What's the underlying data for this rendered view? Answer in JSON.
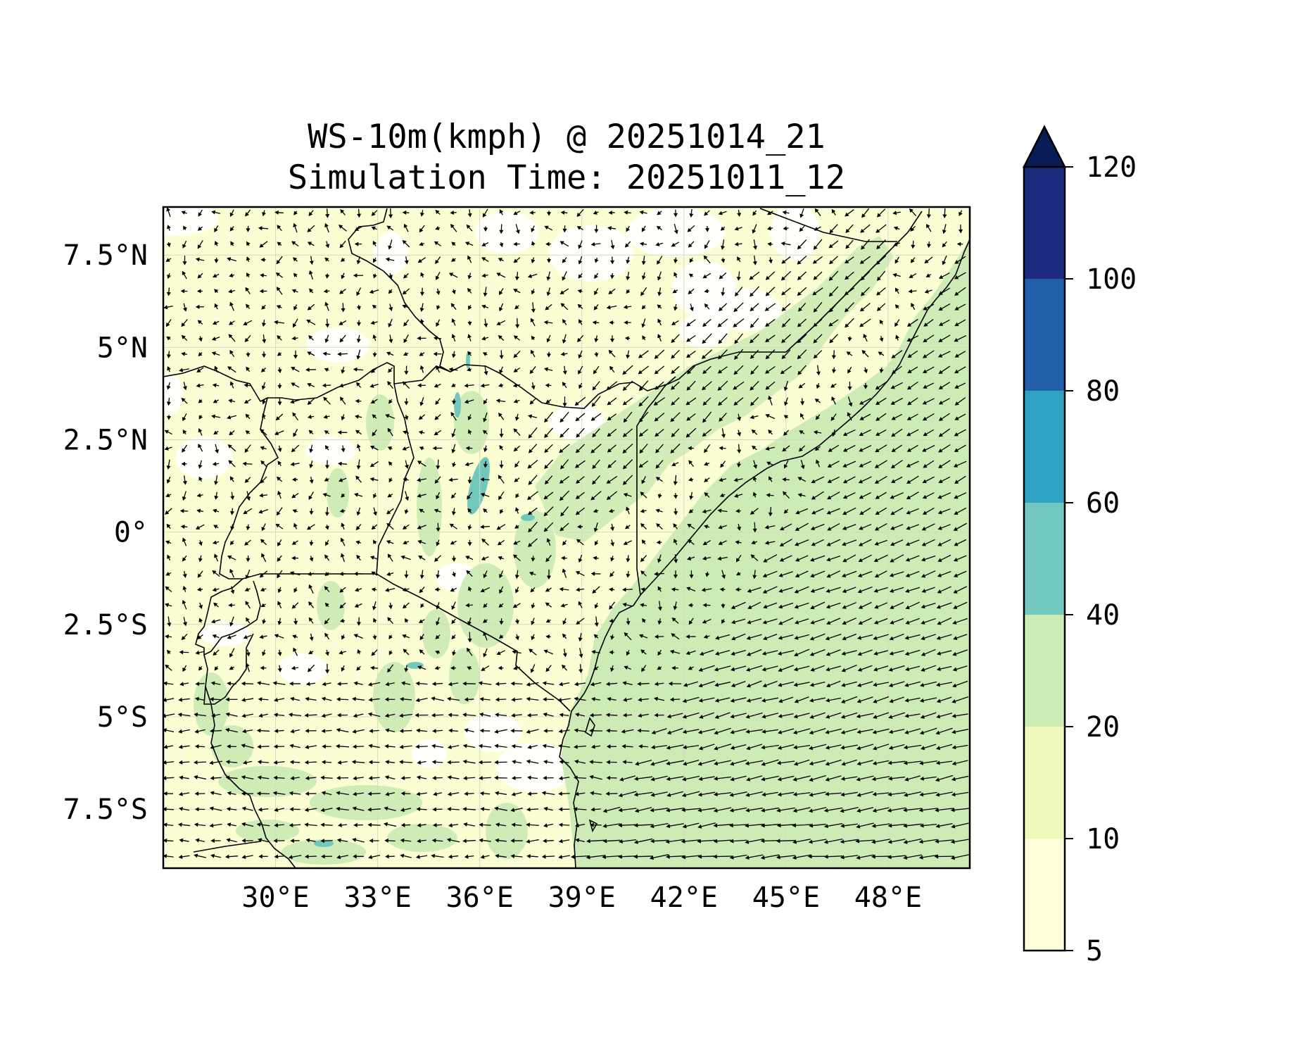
{
  "title": {
    "line1": "WS-10m(kmph) @ 20251014_21",
    "line2": "Simulation Time: 20251011_12"
  },
  "map": {
    "lon_range": [
      26.7,
      50.4
    ],
    "lat_range": [
      -9.1,
      8.8
    ],
    "x_ticks": [
      {
        "value": 30,
        "label": "30°E"
      },
      {
        "value": 33,
        "label": "33°E"
      },
      {
        "value": 36,
        "label": "36°E"
      },
      {
        "value": 39,
        "label": "39°E"
      },
      {
        "value": 42,
        "label": "42°E"
      },
      {
        "value": 45,
        "label": "45°E"
      },
      {
        "value": 48,
        "label": "48°E"
      }
    ],
    "y_ticks": [
      {
        "value": 7.5,
        "label": "7.5°N"
      },
      {
        "value": 5,
        "label": "5°N"
      },
      {
        "value": 2.5,
        "label": "2.5°N"
      },
      {
        "value": 0,
        "label": "0°"
      },
      {
        "value": -2.5,
        "label": "2.5°S"
      },
      {
        "value": -5,
        "label": "5°S"
      },
      {
        "value": -7.5,
        "label": "7.5°S"
      }
    ],
    "gridlines": true,
    "vectors": "wind-arrows"
  },
  "colorbar": {
    "extend": "max",
    "levels": [
      {
        "value": 5,
        "label": "5",
        "color": "#ffffd9"
      },
      {
        "value": 10,
        "label": "10",
        "color": "#eef8bb"
      },
      {
        "value": 20,
        "label": "20",
        "color": "#cdebb4"
      },
      {
        "value": 40,
        "label": "40",
        "color": "#73c8bd"
      },
      {
        "value": 60,
        "label": "60",
        "color": "#2ea3c2"
      },
      {
        "value": 80,
        "label": "80",
        "color": "#2260a9"
      },
      {
        "value": 100,
        "label": "100",
        "color": "#1e2c7f"
      },
      {
        "value": 120,
        "label": "120",
        "color": "#081d58"
      }
    ]
  }
}
